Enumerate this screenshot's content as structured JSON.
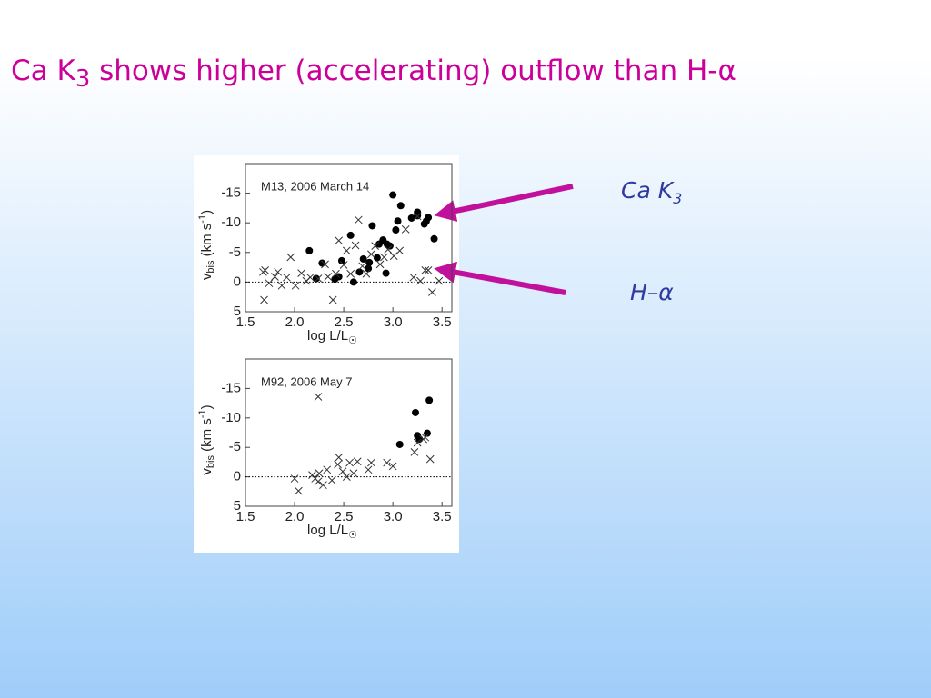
{
  "slide": {
    "title": [
      "Ca K",
      "3",
      " shows higher (accelerating) outflow than H-α"
    ]
  },
  "labels": {
    "ca_k3": [
      "Ca K",
      "3"
    ],
    "h_alpha": "H–α"
  },
  "chart_data": [
    {
      "type": "scatter",
      "annotation": "M13, 2006 March 14",
      "x_label": [
        "log L/L",
        "☉"
      ],
      "y_label": [
        "v",
        "bis",
        " (km s",
        "-1",
        ")"
      ],
      "xlim": [
        1.5,
        3.6
      ],
      "xticks": [
        1.5,
        {
          "value": 2,
          "label": "2.0"
        },
        2.5,
        {
          "value": 3,
          "label": "3.0"
        },
        3.5
      ],
      "ylim": [
        5,
        -20
      ],
      "yticks": [
        -15,
        -10,
        -5,
        0,
        5
      ],
      "zero_line": true,
      "series": [
        {
          "marker": "circle",
          "color": "#000000",
          "x": [
            2.15,
            2.22,
            2.28,
            2.41,
            2.45,
            2.48,
            2.57,
            2.6,
            2.66,
            2.7,
            2.75,
            2.76,
            2.79,
            2.84,
            2.86,
            2.9,
            2.93,
            2.94,
            2.97,
            3.0,
            3.03,
            3.05,
            3.08,
            3.19,
            3.25,
            3.25,
            3.32,
            3.34,
            3.36,
            3.42
          ],
          "values": [
            -5.3,
            -0.6,
            -3.2,
            -0.5,
            -0.9,
            -3.6,
            -7.9,
            0,
            -1.7,
            -3.9,
            -2.3,
            -3.3,
            -9.5,
            -4.1,
            -6.4,
            -7.1,
            -1.5,
            -6.4,
            -6.1,
            -14.7,
            -8.8,
            -10.3,
            -12.9,
            -10.8,
            -11.8,
            -11.2,
            -9.8,
            -10.3,
            -10.9,
            -7.3
          ]
        },
        {
          "marker": "x",
          "color": "#333333",
          "x": [
            1.68,
            1.7,
            1.74,
            1.69,
            1.8,
            1.83,
            1.87,
            1.92,
            1.96,
            2.01,
            2.07,
            2.12,
            2.16,
            2.24,
            2.31,
            2.34,
            2.39,
            2.42,
            2.45,
            2.5,
            2.53,
            2.57,
            2.62,
            2.65,
            2.69,
            2.73,
            2.78,
            2.82,
            2.87,
            2.91,
            2.95,
            3.01,
            3.07,
            3.13,
            3.21,
            3.25,
            3.28,
            3.33,
            3.36,
            3.4,
            3.47
          ],
          "values": [
            -1.7,
            -2.0,
            0.2,
            3.0,
            -0.9,
            -1.7,
            0.6,
            -0.8,
            -4.2,
            0.6,
            -1.5,
            -0.2,
            -0.8,
            -0.6,
            -3.0,
            -0.9,
            3.0,
            -1.4,
            -7.0,
            -2.9,
            -5.3,
            -1.4,
            -6.2,
            -10.5,
            -2.7,
            -1.4,
            -4.7,
            -6.1,
            -3.0,
            -4.2,
            -5.5,
            -4.4,
            -5.3,
            -8.9,
            -0.8,
            -11.1,
            -0.2,
            -2.0,
            -2.0,
            1.7,
            -0.2
          ]
        }
      ]
    },
    {
      "type": "scatter",
      "annotation": "M92, 2006 May 7",
      "x_label": [
        "log L/L",
        "☉"
      ],
      "y_label": [
        "v",
        "bis",
        " (km s",
        "-1",
        ")"
      ],
      "xlim": [
        1.5,
        3.6
      ],
      "xticks": [
        1.5,
        {
          "value": 2,
          "label": "2.0"
        },
        2.5,
        {
          "value": 3,
          "label": "3.0"
        },
        3.5
      ],
      "ylim": [
        5,
        -20
      ],
      "yticks": [
        -15,
        -10,
        -5,
        0,
        5
      ],
      "zero_line": true,
      "series": [
        {
          "marker": "circle",
          "color": "#000000",
          "x": [
            3.07,
            3.23,
            3.25,
            3.27,
            3.35,
            3.37
          ],
          "values": [
            -5.5,
            -10.9,
            -7.0,
            -6.4,
            -7.4,
            -13.0
          ]
        },
        {
          "marker": "x",
          "color": "#333333",
          "x": [
            2.24,
            2.0,
            2.04,
            2.18,
            2.21,
            2.24,
            2.25,
            2.29,
            2.33,
            2.38,
            2.44,
            2.45,
            2.49,
            2.53,
            2.56,
            2.6,
            2.64,
            2.75,
            2.78,
            2.94,
            3.0,
            3.22,
            3.25,
            3.31,
            3.38,
            3.33
          ],
          "values": [
            -13.6,
            0.3,
            2.4,
            -0.3,
            0.3,
            0.8,
            -0.6,
            1.4,
            -1.2,
            0.6,
            -2.1,
            -3.3,
            -0.9,
            0,
            -2.4,
            -0.6,
            -2.6,
            -1.2,
            -2.4,
            -2.4,
            -1.8,
            -4.2,
            -5.8,
            -6.4,
            -3.0,
            -6.7
          ]
        }
      ]
    }
  ]
}
